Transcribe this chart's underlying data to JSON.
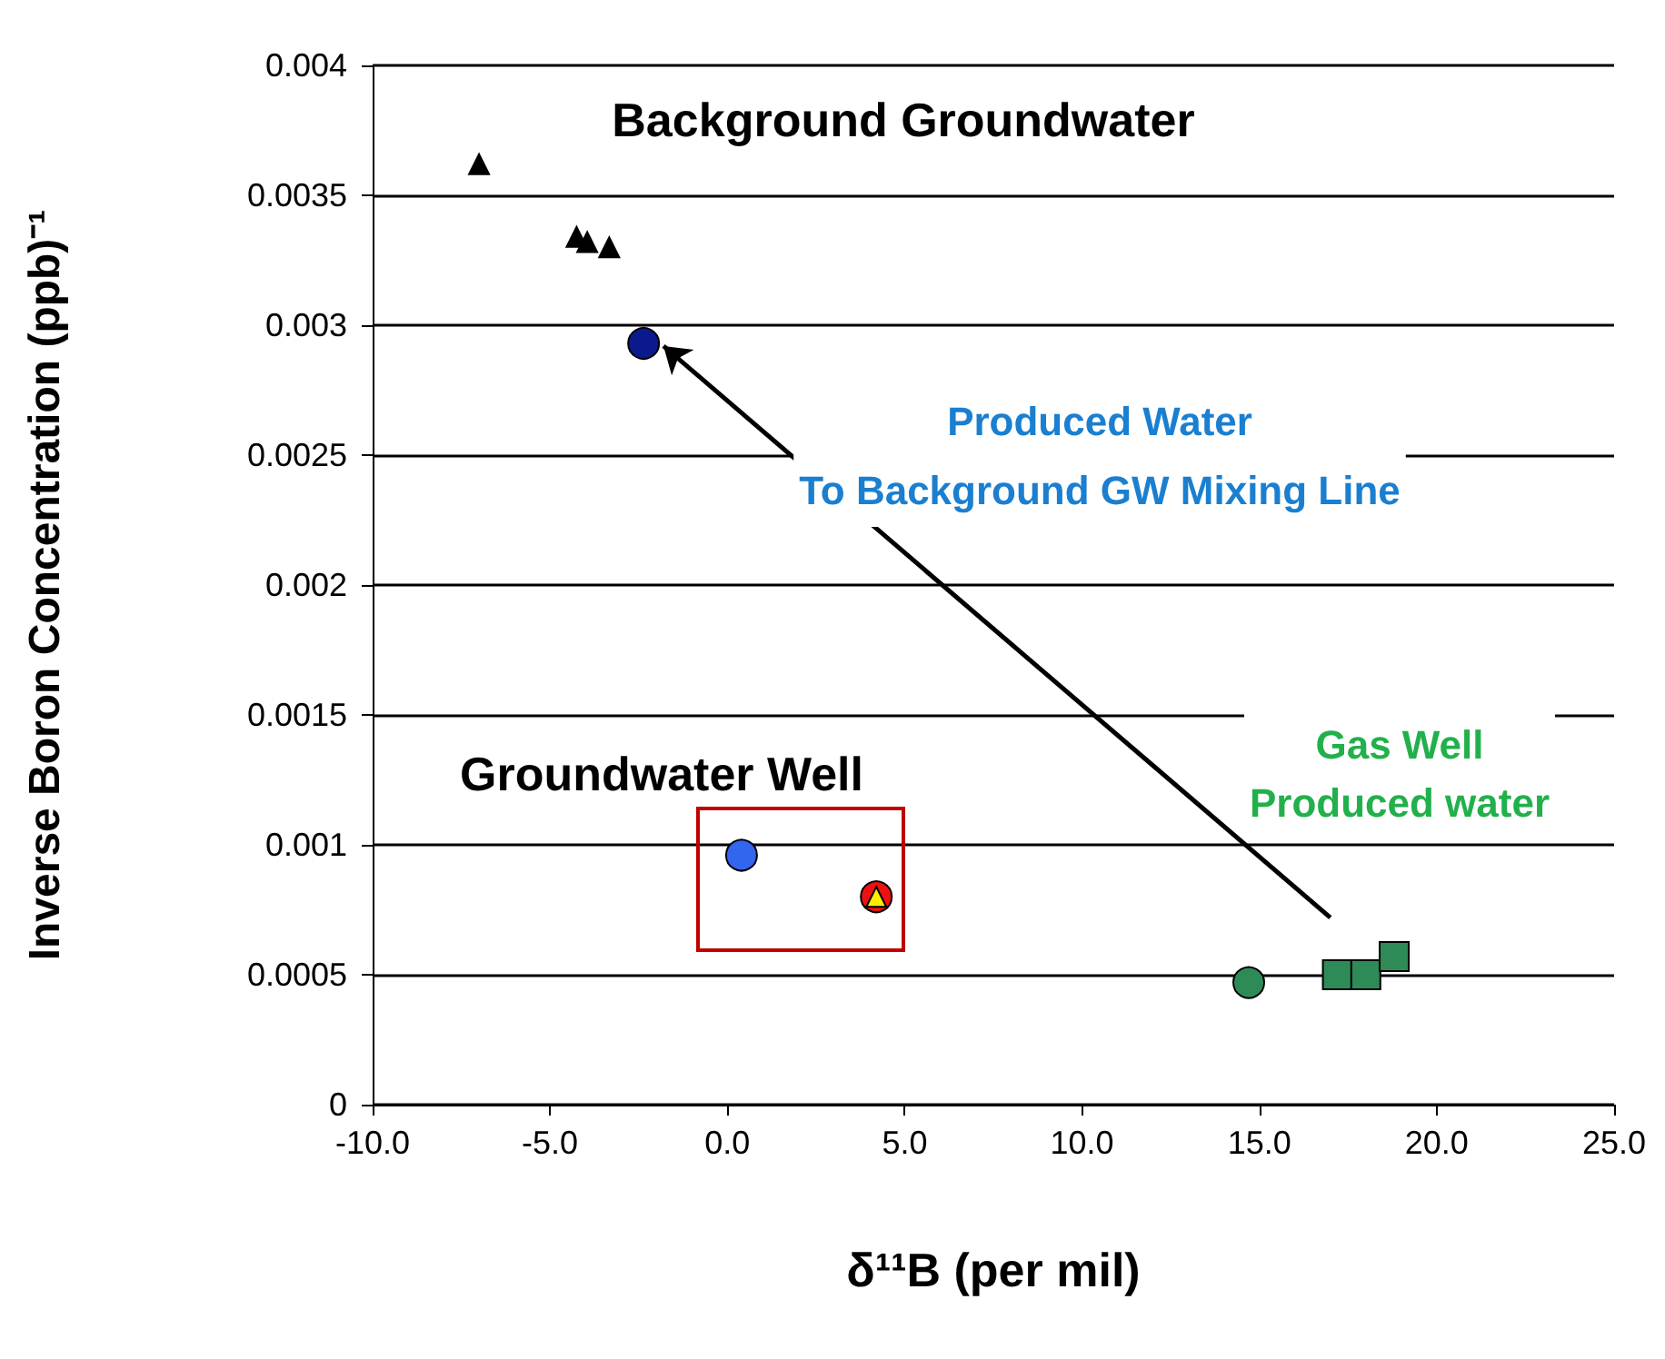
{
  "chart_data": {
    "type": "scatter",
    "xlabel": "δ¹¹B (per mil)",
    "ylabel": "Inverse Boron Concentration (ppb)⁻¹",
    "xlim": [
      -10,
      25
    ],
    "xticks": [
      {
        "value": -10,
        "label": "-10.0"
      },
      {
        "value": -5,
        "label": "-5.0"
      },
      {
        "value": 0,
        "label": "0.0"
      },
      {
        "value": 5,
        "label": "5.0"
      },
      {
        "value": 10,
        "label": "10.0"
      },
      {
        "value": 15,
        "label": "15.0"
      },
      {
        "value": 20,
        "label": "20.0"
      },
      {
        "value": 25,
        "label": "25.0"
      }
    ],
    "ylim": [
      0,
      0.004
    ],
    "yticks": [
      0,
      0.0005,
      0.001,
      0.0015,
      0.002,
      0.0025,
      0.003,
      0.0035,
      0.004
    ],
    "grid": "y",
    "series": [
      {
        "marker": "triangle",
        "color": "#000000",
        "x": [
          -7.0,
          -4.25,
          -3.95,
          -3.33
        ],
        "values": [
          0.00362,
          0.00334,
          0.00332,
          0.0033
        ]
      },
      {
        "marker": "circle",
        "color": "#0a1a8c",
        "x": [
          -2.36
        ],
        "values": [
          0.00293
        ]
      },
      {
        "marker": "circle",
        "color": "#3366ee",
        "x": [
          0.4
        ],
        "values": [
          0.00096
        ]
      },
      {
        "marker": "circle",
        "color": "#ee1111",
        "x": [
          4.2
        ],
        "values": [
          0.0008
        ]
      },
      {
        "marker": "triangle",
        "color": "#ffee00",
        "x": [
          4.2
        ],
        "values": [
          0.0008
        ]
      },
      {
        "marker": "circle",
        "color": "#2e8b57",
        "x": [
          14.7
        ],
        "values": [
          0.00047
        ]
      },
      {
        "marker": "square",
        "color": "#2e8b57",
        "x": [
          17.2,
          18.0,
          18.8
        ],
        "values": [
          0.0005,
          0.0005,
          0.00057
        ]
      }
    ],
    "annotations": [
      "Background Groundwater",
      "Produced Water\nTo Background GW Mixing Line",
      "Gas Well\nProduced water",
      "Groundwater Well"
    ]
  }
}
